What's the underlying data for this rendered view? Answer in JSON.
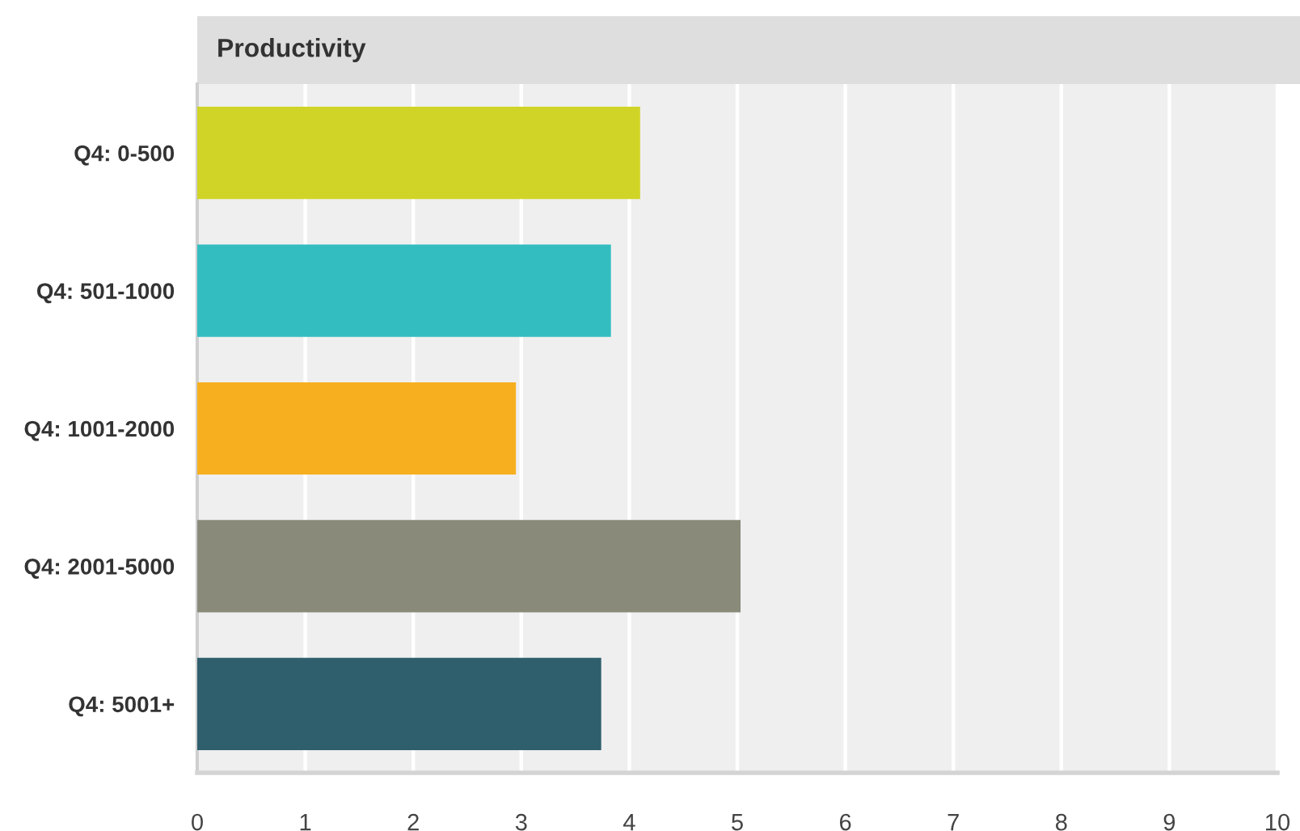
{
  "chart_data": {
    "type": "bar",
    "orientation": "horizontal",
    "title": "Productivity",
    "categories": [
      "Q4: 0-500",
      "Q4: 501-1000",
      "Q4: 1001-2000",
      "Q4: 2001-5000",
      "Q4: 5001+"
    ],
    "values": [
      4.1,
      3.83,
      2.95,
      5.03,
      3.74
    ],
    "colors": [
      "#d0d426",
      "#33bdc0",
      "#f7af1f",
      "#898a7a",
      "#2f5f6d"
    ],
    "xlim": [
      0,
      10
    ],
    "xticks": [
      0,
      1,
      2,
      3,
      4,
      5,
      6,
      7,
      8,
      9,
      10
    ],
    "grid": "x"
  }
}
